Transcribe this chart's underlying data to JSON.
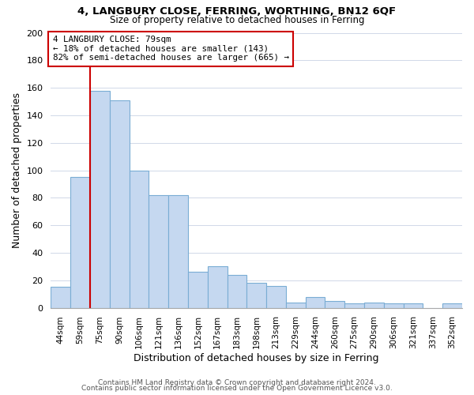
{
  "title1": "4, LANGBURY CLOSE, FERRING, WORTHING, BN12 6QF",
  "title2": "Size of property relative to detached houses in Ferring",
  "xlabel": "Distribution of detached houses by size in Ferring",
  "ylabel": "Number of detached properties",
  "bar_labels": [
    "44sqm",
    "59sqm",
    "75sqm",
    "90sqm",
    "106sqm",
    "121sqm",
    "136sqm",
    "152sqm",
    "167sqm",
    "183sqm",
    "198sqm",
    "213sqm",
    "229sqm",
    "244sqm",
    "260sqm",
    "275sqm",
    "290sqm",
    "306sqm",
    "321sqm",
    "337sqm",
    "352sqm"
  ],
  "bar_values": [
    15,
    95,
    158,
    151,
    100,
    82,
    82,
    26,
    30,
    24,
    18,
    16,
    4,
    8,
    5,
    3,
    4,
    3,
    3,
    0,
    3
  ],
  "bar_color": "#c5d8f0",
  "bar_edge_color": "#7aadd4",
  "ylim": [
    0,
    200
  ],
  "yticks": [
    0,
    20,
    40,
    60,
    80,
    100,
    120,
    140,
    160,
    180,
    200
  ],
  "vline_index": 2,
  "vline_color": "#cc0000",
  "annotation_text": "4 LANGBURY CLOSE: 79sqm\n← 18% of detached houses are smaller (143)\n82% of semi-detached houses are larger (665) →",
  "annotation_box_color": "#ffffff",
  "annotation_box_edge": "#cc0000",
  "footer1": "Contains HM Land Registry data © Crown copyright and database right 2024.",
  "footer2": "Contains public sector information licensed under the Open Government Licence v3.0.",
  "background_color": "#ffffff",
  "grid_color": "#d0d8e8"
}
